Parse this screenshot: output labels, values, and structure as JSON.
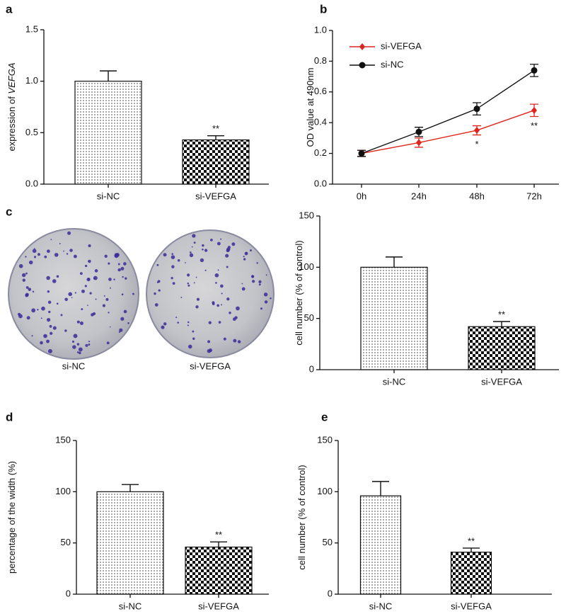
{
  "chart_data": [
    {
      "panel": "a",
      "type": "bar",
      "ylabel": "expression of",
      "ylabel_gene": "VEFGA",
      "categories": [
        "si-NC",
        "si-VEFGA"
      ],
      "values": [
        1.0,
        0.43
      ],
      "errors": [
        0.1,
        0.04
      ],
      "significance": [
        null,
        "**"
      ],
      "ylim": [
        0,
        1.5
      ],
      "yticks": [
        {
          "value": 0,
          "label": "0.0"
        },
        0.5,
        {
          "value": 1,
          "label": "1.0"
        },
        1.5
      ]
    },
    {
      "panel": "b",
      "type": "line",
      "ylabel": "OD value at 490nm",
      "categories": [
        "0h",
        "24h",
        "48h",
        "72h"
      ],
      "series": [
        {
          "name": "si-VEFGA",
          "color": "#e0241b",
          "values": [
            0.2,
            0.27,
            0.35,
            0.48
          ],
          "errors": [
            0.02,
            0.03,
            0.03,
            0.04
          ]
        },
        {
          "name": "si-NC",
          "color": "#111111",
          "values": [
            0.2,
            0.34,
            0.49,
            0.74
          ],
          "errors": [
            0.02,
            0.03,
            0.04,
            0.04
          ]
        }
      ],
      "significance": [
        null,
        null,
        "*",
        "**"
      ],
      "ylim": [
        0,
        1.0
      ],
      "yticks": [
        {
          "value": 0,
          "label": "0.0"
        },
        0.2,
        0.4,
        0.6,
        0.8,
        {
          "value": 1,
          "label": "1.0"
        }
      ]
    },
    {
      "panel": "c",
      "type": "bar",
      "photo_captions": [
        "si-NC",
        "si-VEFGA"
      ],
      "ylabel": "cell number (% of control)",
      "categories": [
        "si-NC",
        "si-VEFGA"
      ],
      "values": [
        100,
        42
      ],
      "errors": [
        10,
        5
      ],
      "significance": [
        null,
        "**"
      ],
      "ylim": [
        0,
        150
      ],
      "yticks": [
        0,
        50,
        100,
        150
      ]
    },
    {
      "panel": "d",
      "type": "bar",
      "ylabel": "percentage of the width (%)",
      "categories": [
        "si-NC",
        "si-VEFGA"
      ],
      "values": [
        100,
        46
      ],
      "errors": [
        7,
        5
      ],
      "significance": [
        null,
        "**"
      ],
      "ylim": [
        0,
        150
      ],
      "yticks": [
        0,
        50,
        100,
        150
      ]
    },
    {
      "panel": "e",
      "type": "bar",
      "ylabel": "cell number (% of control)",
      "categories": [
        "si-NC",
        "si-VEFGA"
      ],
      "values": [
        96,
        41
      ],
      "errors": [
        14,
        4
      ],
      "significance": [
        null,
        "**"
      ],
      "ylim": [
        0,
        150
      ],
      "yticks": [
        0,
        50,
        100,
        150
      ]
    }
  ]
}
